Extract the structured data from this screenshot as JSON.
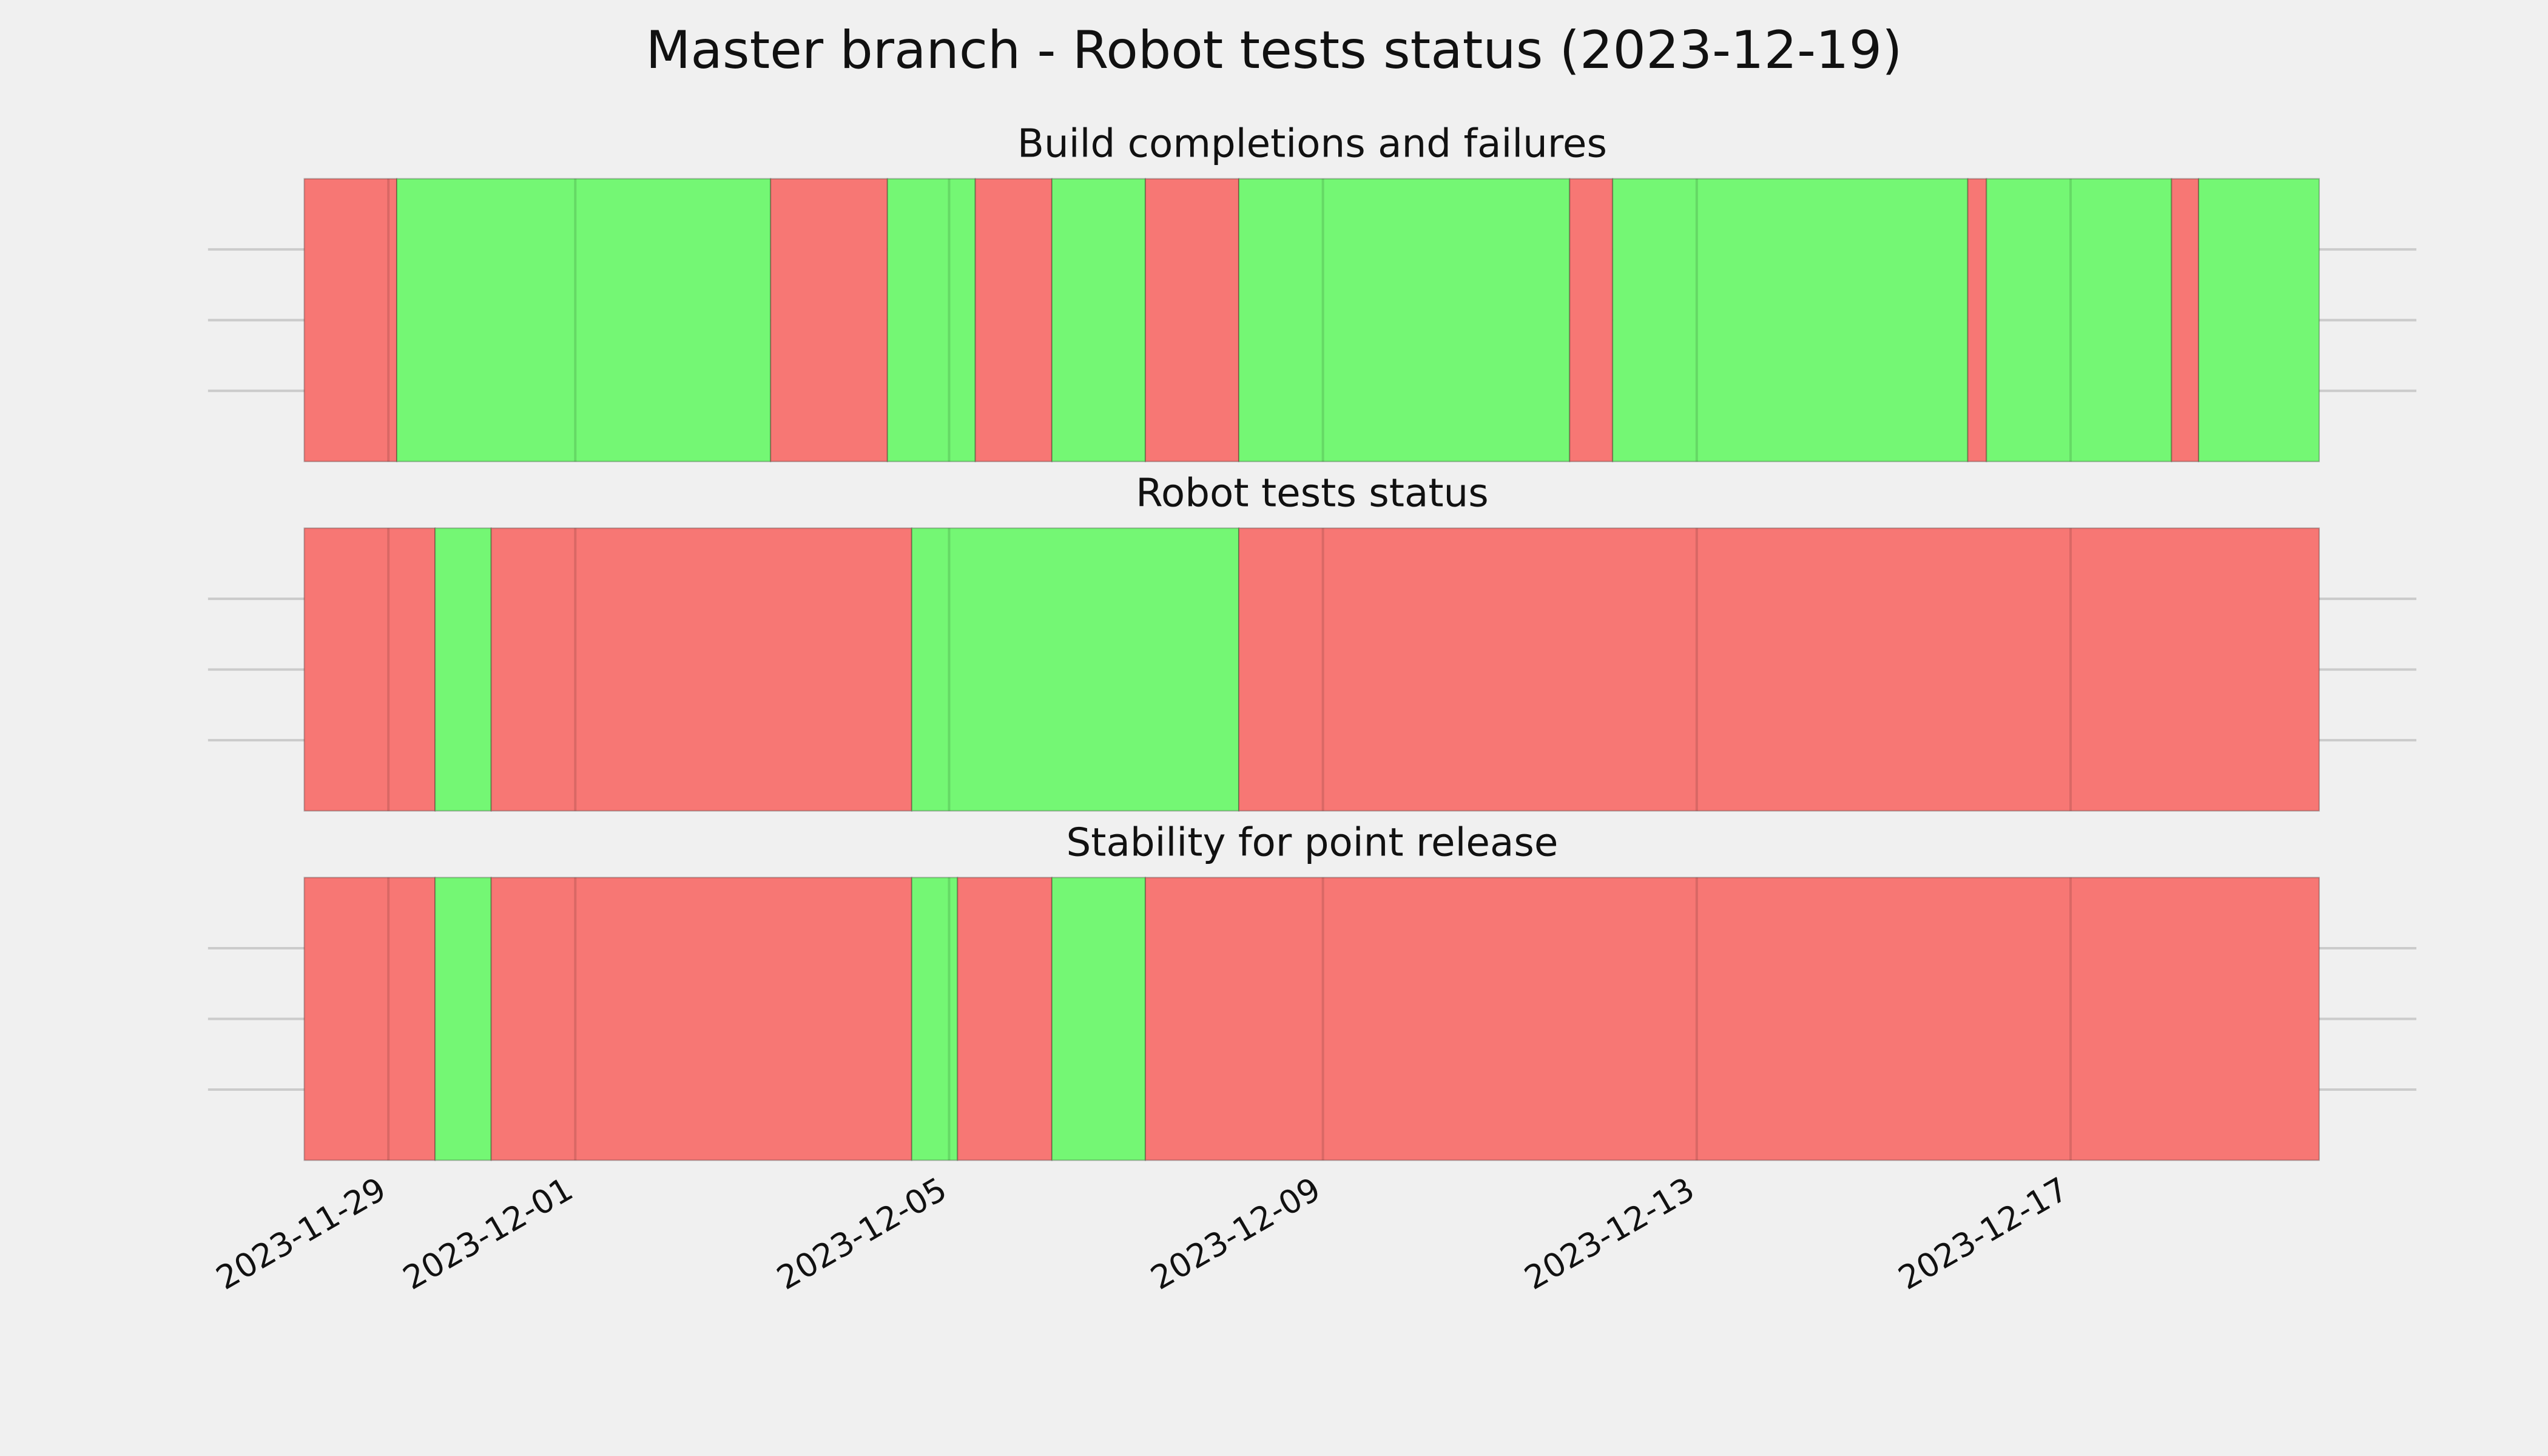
{
  "title": "Master branch - Robot tests status (2023-12-19)",
  "chart_data": [
    {
      "type": "timeline",
      "title": "Build completions and failures",
      "xlim": [
        19688.07,
        19711.7
      ],
      "xticks": [
        {
          "value": 19690,
          "label": "2023-11-29"
        },
        {
          "value": 19692,
          "label": "2023-12-01"
        },
        {
          "value": 19696,
          "label": "2023-12-05"
        },
        {
          "value": 19700,
          "label": "2023-12-09"
        },
        {
          "value": 19704,
          "label": "2023-12-13"
        },
        {
          "value": 19708,
          "label": "2023-12-17"
        }
      ],
      "grid": true,
      "segments": [
        {
          "start": 19689.1,
          "end": 19690.09,
          "color": "#f77774"
        },
        {
          "start": 19690.09,
          "end": 19694.09,
          "color": "#74f774"
        },
        {
          "start": 19694.09,
          "end": 19695.34,
          "color": "#f77774"
        },
        {
          "start": 19695.34,
          "end": 19696.28,
          "color": "#74f774"
        },
        {
          "start": 19696.28,
          "end": 19697.1,
          "color": "#f77774"
        },
        {
          "start": 19697.1,
          "end": 19698.1,
          "color": "#74f774"
        },
        {
          "start": 19698.1,
          "end": 19699.1,
          "color": "#f77774"
        },
        {
          "start": 19699.1,
          "end": 19702.64,
          "color": "#74f774"
        },
        {
          "start": 19702.64,
          "end": 19703.1,
          "color": "#f77774"
        },
        {
          "start": 19703.1,
          "end": 19706.9,
          "color": "#74f774"
        },
        {
          "start": 19706.9,
          "end": 19707.1,
          "color": "#f77774"
        },
        {
          "start": 19707.1,
          "end": 19709.08,
          "color": "#74f774"
        },
        {
          "start": 19709.08,
          "end": 19709.37,
          "color": "#f77774"
        },
        {
          "start": 19709.37,
          "end": 19710.66,
          "color": "#74f774"
        }
      ]
    },
    {
      "type": "timeline",
      "title": "Robot tests status",
      "xlim": [
        19688.07,
        19711.7
      ],
      "xticks": [
        {
          "value": 19690,
          "label": "2023-11-29"
        },
        {
          "value": 19692,
          "label": "2023-12-01"
        },
        {
          "value": 19696,
          "label": "2023-12-05"
        },
        {
          "value": 19700,
          "label": "2023-12-09"
        },
        {
          "value": 19704,
          "label": "2023-12-13"
        },
        {
          "value": 19708,
          "label": "2023-12-17"
        }
      ],
      "grid": true,
      "segments": [
        {
          "start": 19689.1,
          "end": 19690.5,
          "color": "#f77774"
        },
        {
          "start": 19690.5,
          "end": 19691.1,
          "color": "#74f774"
        },
        {
          "start": 19691.1,
          "end": 19695.6,
          "color": "#f77774"
        },
        {
          "start": 19695.6,
          "end": 19699.1,
          "color": "#74f774"
        },
        {
          "start": 19699.1,
          "end": 19710.66,
          "color": "#f77774"
        }
      ]
    },
    {
      "type": "timeline",
      "title": "Stability for point release",
      "xlim": [
        19688.07,
        19711.7
      ],
      "xticks": [
        {
          "value": 19690,
          "label": "2023-11-29"
        },
        {
          "value": 19692,
          "label": "2023-12-01"
        },
        {
          "value": 19696,
          "label": "2023-12-05"
        },
        {
          "value": 19700,
          "label": "2023-12-09"
        },
        {
          "value": 19704,
          "label": "2023-12-13"
        },
        {
          "value": 19708,
          "label": "2023-12-17"
        }
      ],
      "grid": true,
      "segments": [
        {
          "start": 19689.1,
          "end": 19690.5,
          "color": "#f77774"
        },
        {
          "start": 19690.5,
          "end": 19691.1,
          "color": "#74f774"
        },
        {
          "start": 19691.1,
          "end": 19695.6,
          "color": "#f77774"
        },
        {
          "start": 19695.6,
          "end": 19696.09,
          "color": "#74f774"
        },
        {
          "start": 19696.09,
          "end": 19697.1,
          "color": "#f77774"
        },
        {
          "start": 19697.1,
          "end": 19698.1,
          "color": "#74f774"
        },
        {
          "start": 19698.1,
          "end": 19710.66,
          "color": "#f77774"
        }
      ]
    }
  ]
}
